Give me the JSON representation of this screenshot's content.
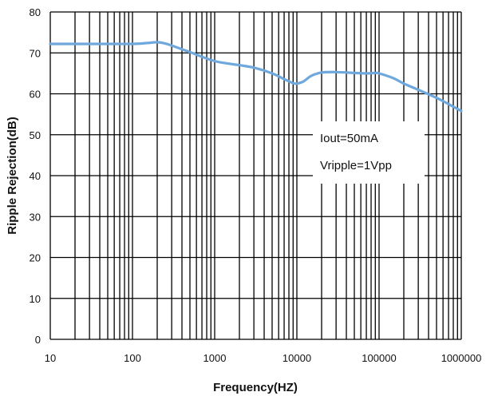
{
  "chart_data": {
    "type": "line",
    "title": "",
    "xlabel": "Frequency(HZ)",
    "ylabel": "Ripple Rejection(dB)",
    "xscale": "log",
    "xlim": [
      10,
      1000000
    ],
    "ylim": [
      0,
      80
    ],
    "xticks": [
      "10",
      "100",
      "1000",
      "10000",
      "100000",
      "1000000"
    ],
    "yticks": [
      "0",
      "10",
      "20",
      "30",
      "40",
      "50",
      "60",
      "70",
      "80"
    ],
    "grid": true,
    "annotations": [
      "Iout=50mA",
      "Vripple=1Vpp"
    ],
    "series": [
      {
        "color": "#6fa8dc",
        "x": [
          10,
          20,
          50,
          100,
          150,
          200,
          250,
          300,
          500,
          1000,
          2000,
          3000,
          5000,
          7000,
          9000,
          10000,
          12000,
          15000,
          20000,
          30000,
          50000,
          70000,
          90000,
          100000,
          150000,
          200000,
          300000,
          500000,
          700000,
          1000000
        ],
        "values": [
          72.2,
          72.2,
          72.2,
          72.2,
          72.4,
          72.6,
          72.3,
          71.8,
          70.2,
          68.0,
          67.0,
          66.4,
          65.0,
          63.6,
          62.6,
          62.5,
          63.0,
          64.4,
          65.2,
          65.3,
          65.1,
          65.0,
          65.1,
          65.0,
          63.8,
          62.5,
          61.0,
          59.0,
          57.5,
          55.8
        ]
      }
    ]
  }
}
